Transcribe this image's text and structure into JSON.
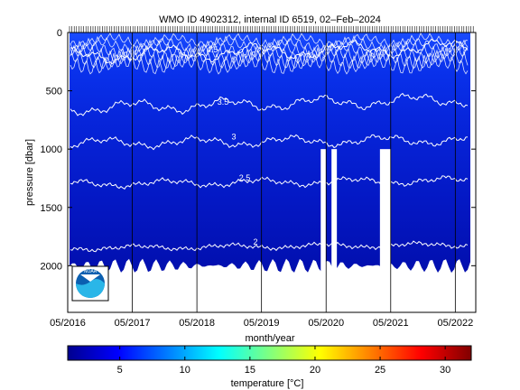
{
  "chart_data": [
    {
      "type": "heatmap",
      "title": "WMO ID 4902312, internal ID 6519, 02–Feb–2024",
      "xlabel": "month/year",
      "ylabel": "pressure [dbar]",
      "x_tick_labels": [
        "05/2016",
        "05/2017",
        "05/2018",
        "05/2019",
        "05/2020",
        "05/2021",
        "05/2022"
      ],
      "x_range": [
        "2016-05",
        "2022-08"
      ],
      "y_ticks": [
        0,
        500,
        1000,
        1500,
        2000
      ],
      "y_range": [
        0,
        2400
      ],
      "y_reversed": true,
      "colorbar": {
        "label": "temperature [°C]",
        "ticks": [
          5,
          10,
          15,
          20,
          25,
          30
        ],
        "range": [
          1,
          32
        ],
        "colormap": "jet"
      },
      "isotherms": [
        {
          "label": "4.5",
          "pressure": 200
        },
        {
          "label": "3.5",
          "pressure": 650
        },
        {
          "label": "3",
          "pressure": 950
        },
        {
          "label": "2.5",
          "pressure": 1300
        },
        {
          "label": "2",
          "pressure": 1850
        }
      ],
      "data_gaps": [
        {
          "start": "2020-04",
          "end": "2020-05",
          "pressure_range": [
            1000,
            2000
          ]
        },
        {
          "start": "2020-06",
          "end": "2020-07",
          "pressure_range": [
            1000,
            2000
          ]
        },
        {
          "start": "2021-03",
          "end": "2021-05",
          "pressure_range": [
            1000,
            2000
          ]
        }
      ],
      "max_profile_pressure": 2000,
      "logo": "noaa-logo"
    }
  ]
}
